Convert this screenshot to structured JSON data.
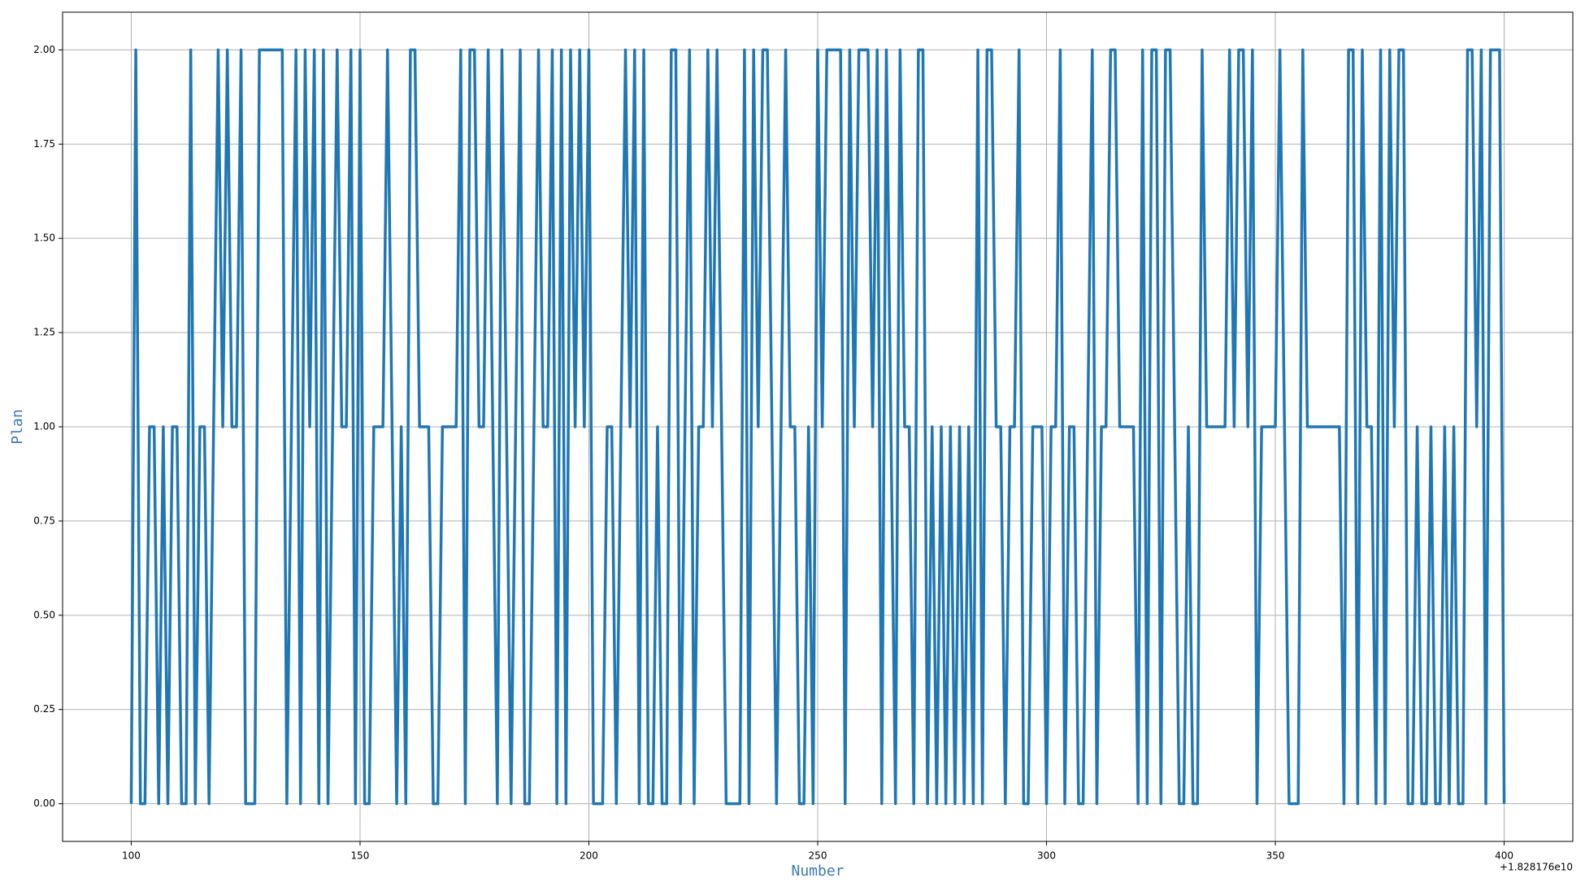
{
  "chart_data": {
    "type": "line",
    "x_label": "Number",
    "y_label": "Plan",
    "x_offset_label": "+1.828176e10",
    "x": [
      100,
      101,
      102,
      103,
      104,
      105,
      106,
      107,
      108,
      109,
      110,
      111,
      112,
      113,
      114,
      115,
      116,
      117,
      118,
      119,
      120,
      121,
      122,
      123,
      124,
      125,
      126,
      127,
      128,
      129,
      130,
      131,
      132,
      133,
      134,
      135,
      136,
      137,
      138,
      139,
      140,
      141,
      142,
      143,
      144,
      145,
      146,
      147,
      148,
      149,
      150,
      151,
      152,
      153,
      154,
      155,
      156,
      157,
      158,
      159,
      160,
      161,
      162,
      163,
      164,
      165,
      166,
      167,
      168,
      169,
      170,
      171,
      172,
      173,
      174,
      175,
      176,
      177,
      178,
      179,
      180,
      181,
      182,
      183,
      184,
      185,
      186,
      187,
      188,
      189,
      190,
      191,
      192,
      193,
      194,
      195,
      196,
      197,
      198,
      199,
      200,
      201,
      202,
      203,
      204,
      205,
      206,
      207,
      208,
      209,
      210,
      211,
      212,
      213,
      214,
      215,
      216,
      217,
      218,
      219,
      220,
      221,
      222,
      223,
      224,
      225,
      226,
      227,
      228,
      229,
      230,
      231,
      232,
      233,
      234,
      235,
      236,
      237,
      238,
      239,
      240,
      241,
      242,
      243,
      244,
      245,
      246,
      247,
      248,
      249,
      250,
      251,
      252,
      253,
      254,
      255,
      256,
      257,
      258,
      259,
      260,
      261,
      262,
      263,
      264,
      265,
      266,
      267,
      268,
      269,
      270,
      271,
      272,
      273,
      274,
      275,
      276,
      277,
      278,
      279,
      280,
      281,
      282,
      283,
      284,
      285,
      286,
      287,
      288,
      289,
      290,
      291,
      292,
      293,
      294,
      295,
      296,
      297,
      298,
      299,
      300,
      301,
      302,
      303,
      304,
      305,
      306,
      307,
      308,
      309,
      310,
      311,
      312,
      313,
      314,
      315,
      316,
      317,
      318,
      319,
      320,
      321,
      322,
      323,
      324,
      325,
      326,
      327,
      328,
      329,
      330,
      331,
      332,
      333,
      334,
      335,
      336,
      337,
      338,
      339,
      340,
      341,
      342,
      343,
      344,
      345,
      346,
      347,
      348,
      349,
      350,
      351,
      352,
      353,
      354,
      355,
      356,
      357,
      358,
      359,
      360,
      361,
      362,
      363,
      364,
      365,
      366,
      367,
      368,
      369,
      370,
      371,
      372,
      373,
      374,
      375,
      376,
      377,
      378,
      379,
      380,
      381,
      382,
      383,
      384,
      385,
      386,
      387,
      388,
      389,
      390,
      391,
      392,
      393,
      394,
      395,
      396,
      397,
      398,
      399,
      400
    ],
    "series": [
      {
        "color": "#1f77b4",
        "values": [
          0,
          2,
          0,
          0,
          1,
          1,
          0,
          1,
          0,
          1,
          1,
          0,
          0,
          2,
          0,
          1,
          1,
          0,
          1,
          2,
          1,
          2,
          1,
          1,
          2,
          0,
          0,
          0,
          2,
          2,
          2,
          2,
          2,
          2,
          0,
          1,
          2,
          0,
          2,
          1,
          2,
          0,
          2,
          0,
          1,
          2,
          1,
          1,
          2,
          0,
          2,
          0,
          0,
          1,
          1,
          1,
          2,
          1,
          0,
          1,
          0,
          2,
          2,
          1,
          1,
          1,
          0,
          0,
          1,
          1,
          1,
          1,
          2,
          0,
          2,
          2,
          1,
          1,
          2,
          1,
          0,
          2,
          1,
          0,
          1,
          2,
          0,
          0,
          1,
          2,
          1,
          1,
          2,
          0,
          2,
          0,
          2,
          1,
          2,
          1,
          2,
          0,
          0,
          0,
          1,
          1,
          0,
          1,
          2,
          1,
          2,
          0,
          2,
          0,
          0,
          1,
          0,
          0,
          2,
          2,
          0,
          1,
          2,
          0,
          1,
          1,
          2,
          1,
          2,
          1,
          0,
          0,
          0,
          0,
          2,
          0,
          2,
          1,
          2,
          2,
          1,
          0,
          1,
          2,
          1,
          1,
          0,
          0,
          1,
          0,
          2,
          1,
          2,
          2,
          2,
          2,
          0,
          2,
          1,
          2,
          2,
          2,
          1,
          2,
          0,
          2,
          1,
          0,
          2,
          1,
          1,
          0,
          2,
          2,
          0,
          1,
          0,
          1,
          0,
          1,
          0,
          1,
          0,
          1,
          0,
          2,
          0,
          2,
          2,
          1,
          1,
          0,
          1,
          1,
          2,
          0,
          0,
          1,
          1,
          1,
          0,
          1,
          1,
          2,
          0,
          1,
          1,
          0,
          0,
          1,
          2,
          0,
          1,
          1,
          2,
          2,
          1,
          1,
          1,
          1,
          0,
          2,
          0,
          2,
          2,
          0,
          2,
          2,
          1,
          0,
          0,
          1,
          0,
          0,
          2,
          1,
          1,
          1,
          1,
          1,
          2,
          1,
          2,
          2,
          1,
          2,
          0,
          1,
          1,
          1,
          1,
          2,
          1,
          0,
          0,
          0,
          2,
          1,
          1,
          1,
          1,
          1,
          1,
          1,
          1,
          0,
          2,
          2,
          0,
          2,
          1,
          1,
          0,
          2,
          0,
          2,
          1,
          2,
          2,
          0,
          0,
          1,
          0,
          0,
          1,
          0,
          0,
          1,
          0,
          1,
          0,
          0,
          2,
          2,
          1,
          2,
          0,
          2,
          2,
          2,
          0
        ]
      }
    ],
    "xlim": [
      85,
      415
    ],
    "xticks": [
      100,
      150,
      200,
      250,
      300,
      350,
      400
    ],
    "ylim": [
      -0.1,
      2.1
    ],
    "yticks": [
      {
        "value": 0,
        "label": "0.00"
      },
      {
        "value": 0.25,
        "label": "0.25"
      },
      {
        "value": 0.5,
        "label": "0.50"
      },
      {
        "value": 0.75,
        "label": "0.75"
      },
      {
        "value": 1,
        "label": "1.00"
      },
      {
        "value": 1.25,
        "label": "1.25"
      },
      {
        "value": 1.5,
        "label": "1.50"
      },
      {
        "value": 1.75,
        "label": "1.75"
      },
      {
        "value": 2,
        "label": "2.00"
      }
    ],
    "grid": true
  }
}
